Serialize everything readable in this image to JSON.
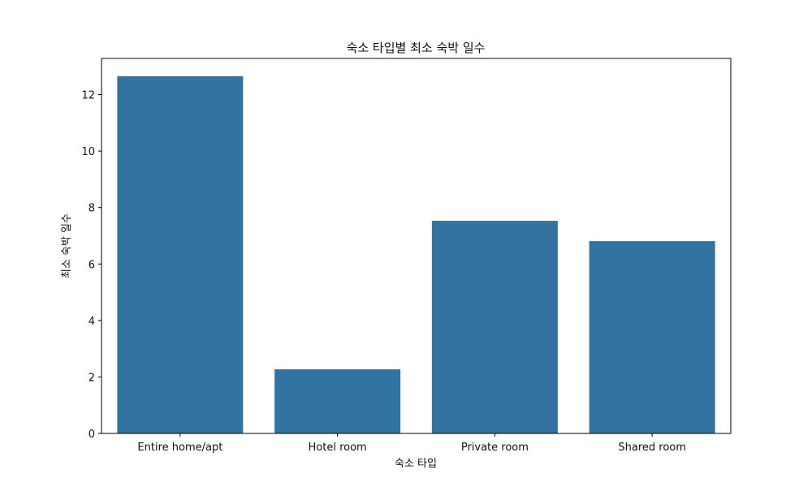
{
  "chart_data": {
    "type": "bar",
    "title": "숙소 타입별 최소 숙박 일수",
    "xlabel": "숙소 타입",
    "ylabel": "최소 숙박 일수",
    "categories": [
      "Entire home/apt",
      "Hotel room",
      "Private room",
      "Shared room"
    ],
    "values": [
      12.65,
      2.27,
      7.53,
      6.81
    ],
    "ylim": [
      0,
      13.28
    ],
    "yticks": [
      0,
      2,
      4,
      6,
      8,
      10,
      12
    ],
    "grid": false,
    "legend": "none",
    "bar_color": "#3274a1"
  }
}
